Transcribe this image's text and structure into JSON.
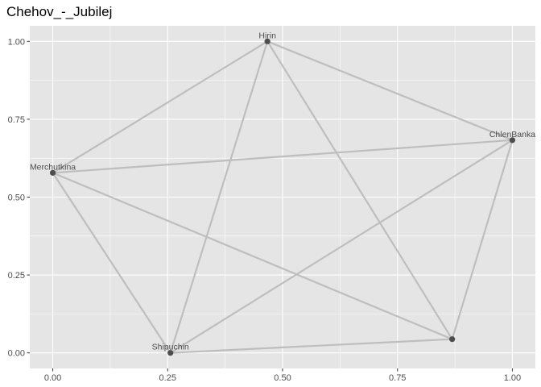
{
  "chart_data": {
    "type": "network",
    "title": "Chehov_-_Jubilej",
    "xlabel": "",
    "ylabel": "",
    "xlim": [
      -0.05,
      1.05
    ],
    "ylim": [
      -0.05,
      1.05
    ],
    "x_ticks": [
      {
        "value": 0.0,
        "label": "0.00"
      },
      {
        "value": 0.25,
        "label": "0.25"
      },
      {
        "value": 0.5,
        "label": "0.50"
      },
      {
        "value": 0.75,
        "label": "0.75"
      },
      {
        "value": 1.0,
        "label": "1.00"
      }
    ],
    "y_ticks": [
      {
        "value": 0.0,
        "label": "0.00"
      },
      {
        "value": 0.25,
        "label": "0.25"
      },
      {
        "value": 0.5,
        "label": "0.50"
      },
      {
        "value": 0.75,
        "label": "0.75"
      },
      {
        "value": 1.0,
        "label": "1.00"
      }
    ],
    "grid": true,
    "nodes": [
      {
        "id": "hirin",
        "label": "Hirin",
        "x": 0.467,
        "y": 1.0
      },
      {
        "id": "chlenbanka",
        "label": "ChlenBanka",
        "x": 1.0,
        "y": 0.683
      },
      {
        "id": "merchutkina",
        "label": "Merchutkina",
        "x": 0.0,
        "y": 0.578
      },
      {
        "id": "shipuchin",
        "label": "Shipuchin",
        "x": 0.256,
        "y": 0.0
      },
      {
        "id": "unlabeled",
        "label": "",
        "x": 0.869,
        "y": 0.044
      }
    ],
    "edges": [
      [
        "hirin",
        "chlenbanka"
      ],
      [
        "hirin",
        "merchutkina"
      ],
      [
        "hirin",
        "shipuchin"
      ],
      [
        "hirin",
        "unlabeled"
      ],
      [
        "chlenbanka",
        "merchutkina"
      ],
      [
        "chlenbanka",
        "shipuchin"
      ],
      [
        "chlenbanka",
        "unlabeled"
      ],
      [
        "merchutkina",
        "shipuchin"
      ],
      [
        "merchutkina",
        "unlabeled"
      ],
      [
        "shipuchin",
        "unlabeled"
      ]
    ],
    "colors": {
      "panel": "#e5e5e5",
      "grid_major": "#ffffff",
      "edge": "#bebebe",
      "node": "#4d4d4d"
    }
  }
}
